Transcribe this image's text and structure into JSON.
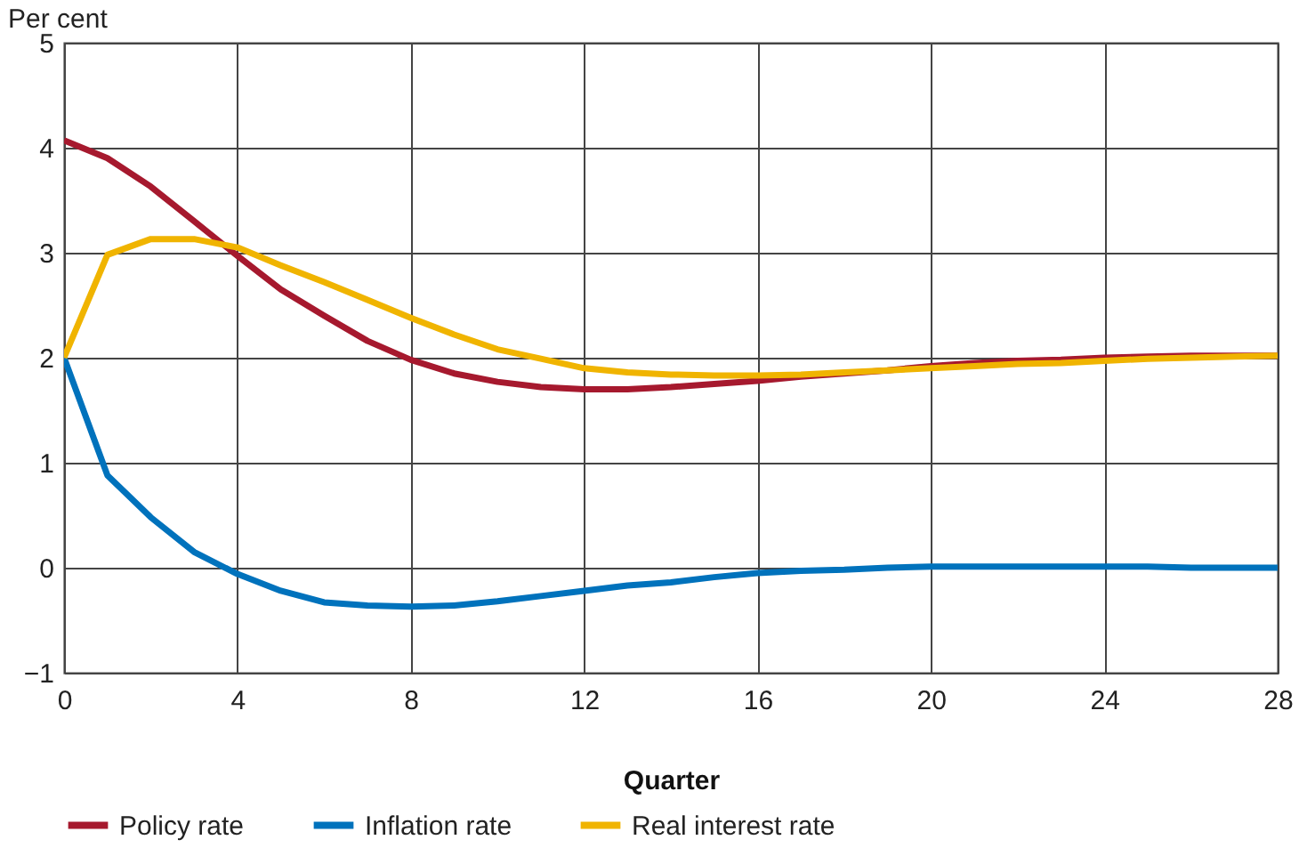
{
  "chart_data": {
    "type": "line",
    "xlabel": "Quarter",
    "ylabel": "Per cent",
    "x": [
      0,
      1,
      2,
      3,
      4,
      5,
      6,
      7,
      8,
      9,
      10,
      11,
      12,
      13,
      14,
      15,
      16,
      17,
      18,
      19,
      20,
      21,
      22,
      23,
      24,
      25,
      26,
      27,
      28
    ],
    "series": [
      {
        "name": "Policy rate",
        "color": "#a6192e",
        "values": [
          4.07,
          3.9,
          3.63,
          3.3,
          2.97,
          2.65,
          2.4,
          2.16,
          1.98,
          1.85,
          1.77,
          1.72,
          1.7,
          1.7,
          1.72,
          1.75,
          1.78,
          1.82,
          1.85,
          1.88,
          1.92,
          1.95,
          1.97,
          1.98,
          2.0,
          2.01,
          2.02,
          2.02,
          2.02
        ]
      },
      {
        "name": "Inflation rate",
        "color": "#0072bc",
        "values": [
          2,
          0.88,
          0.48,
          0.15,
          -0.06,
          -0.22,
          -0.33,
          -0.36,
          -0.37,
          -0.36,
          -0.32,
          -0.27,
          -0.22,
          -0.17,
          -0.14,
          -0.09,
          -0.05,
          -0.03,
          -0.02,
          0,
          0.01,
          0.01,
          0.01,
          0.01,
          0.01,
          0.01,
          0,
          0,
          0
        ]
      },
      {
        "name": "Real interest rate",
        "color": "#f0b400",
        "values": [
          2,
          2.98,
          3.13,
          3.13,
          3.05,
          2.88,
          2.72,
          2.55,
          2.38,
          2.22,
          2.08,
          1.99,
          1.9,
          1.86,
          1.84,
          1.83,
          1.83,
          1.84,
          1.86,
          1.88,
          1.9,
          1.92,
          1.94,
          1.95,
          1.97,
          1.99,
          2.0,
          2.01,
          2.02
        ]
      }
    ],
    "xlim": [
      0,
      28
    ],
    "xticks": [
      0,
      4,
      8,
      12,
      16,
      20,
      24,
      28
    ],
    "ylim": [
      -1,
      5
    ],
    "yticks": [
      -1,
      0,
      1,
      2,
      3,
      4,
      5
    ],
    "grid": true,
    "legend": "bottom"
  }
}
